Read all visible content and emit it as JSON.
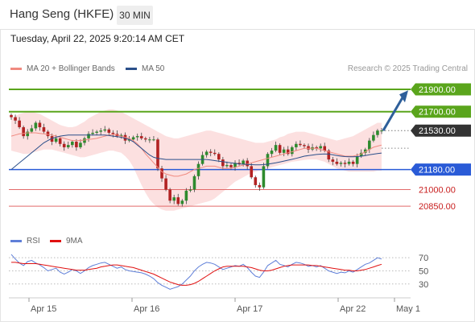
{
  "header": {
    "title": "Hang Seng (HKFE)",
    "timeframe": "30 MIN",
    "datetime": "Tuesday, April 22, 2025 9:20:14 AM CET",
    "credit": "Research © 2025 Trading Central"
  },
  "legend": {
    "ma20_label": "MA 20 + Bollinger Bands",
    "ma50_label": "MA 50",
    "rsi_label": "RSI",
    "ma9_label": "9MA"
  },
  "colors": {
    "ma20": "#f08a80",
    "ma50": "#2b4f8a",
    "bands": "#fbd8d8",
    "resistance": "#5aa51c",
    "support": "#2a5bd7",
    "target_line": "#e26a6a",
    "price_tag": "#333333",
    "arrow": "#2e5f9a",
    "rsi": "#5f7fd8",
    "rsi_ma": "#e01010"
  },
  "chart_data": [
    {
      "type": "candlestick",
      "title": "Hang Seng (HKFE)",
      "x_ticks": [
        "Apr 15",
        "Apr 16",
        "Apr 17",
        "Apr 22",
        "May 1"
      ],
      "y_range": [
        20750,
        21980
      ],
      "levels": [
        {
          "value": 21900.0,
          "label": "21900.00",
          "kind": "resistance",
          "tag": "green"
        },
        {
          "value": 21700.0,
          "label": "21700.00",
          "kind": "resistance",
          "tag": "green"
        },
        {
          "value": 21530.0,
          "label": "21530.00",
          "kind": "last_price",
          "tag": "dark"
        },
        {
          "value": 21180.0,
          "label": "21180.00",
          "kind": "pivot",
          "tag": "blue"
        },
        {
          "value": 21000.0,
          "label": "21000.00",
          "kind": "support",
          "tag": "none"
        },
        {
          "value": 20850.0,
          "label": "20850.00",
          "kind": "support",
          "tag": "none"
        }
      ],
      "close": [
        21650,
        21620,
        21560,
        21480,
        21520,
        21550,
        21600,
        21560,
        21520,
        21480,
        21430,
        21460,
        21410,
        21380,
        21400,
        21430,
        21380,
        21420,
        21460,
        21500,
        21510,
        21520,
        21530,
        21540,
        21510,
        21500,
        21480,
        21490,
        21440,
        21450,
        21470,
        21480,
        21460,
        21450,
        21450,
        21450,
        21190,
        21100,
        21000,
        20900,
        20930,
        20870,
        20900,
        20990,
        21000,
        21120,
        21230,
        21310,
        21340,
        21330,
        21320,
        21270,
        21210,
        21220,
        21200,
        21240,
        21230,
        21260,
        21210,
        21110,
        21040,
        21020,
        21210,
        21320,
        21350,
        21400,
        21330,
        21360,
        21320,
        21380,
        21410,
        21400,
        21390,
        21360,
        21380,
        21370,
        21390,
        21350,
        21270,
        21250,
        21230,
        21240,
        21230,
        21250,
        21230,
        21300,
        21330,
        21360,
        21440,
        21490,
        21530,
        21530
      ],
      "bollinger_upper": [
        21640,
        21660,
        21680,
        21690,
        21700,
        21700,
        21690,
        21680,
        21660,
        21640,
        21620,
        21600,
        21580,
        21570,
        21560,
        21560,
        21570,
        21590,
        21610,
        21640,
        21660,
        21680,
        21700,
        21710,
        21720,
        21720,
        21710,
        21700,
        21680,
        21660,
        21640,
        21620,
        21600,
        21580,
        21560,
        21540,
        21520,
        21500,
        21480,
        21470,
        21460,
        21460,
        21470,
        21480,
        21490,
        21500,
        21510,
        21520,
        21530,
        21530,
        21520,
        21510,
        21500,
        21490,
        21480,
        21470,
        21460,
        21450,
        21440,
        21430,
        21420,
        21420,
        21420,
        21430,
        21440,
        21450,
        21470,
        21480,
        21500,
        21510,
        21520,
        21520,
        21520,
        21510,
        21500,
        21490,
        21480,
        21470,
        21460,
        21450,
        21440,
        21450,
        21460,
        21470,
        21480,
        21500,
        21520,
        21540,
        21560,
        21580,
        21600,
        21600
      ],
      "bollinger_lower": [
        21350,
        21340,
        21330,
        21320,
        21320,
        21330,
        21340,
        21350,
        21360,
        21360,
        21360,
        21350,
        21340,
        21330,
        21320,
        21310,
        21300,
        21290,
        21290,
        21300,
        21310,
        21320,
        21330,
        21340,
        21350,
        21350,
        21340,
        21330,
        21300,
        21260,
        21200,
        21120,
        21040,
        20970,
        20910,
        20870,
        20840,
        20820,
        20810,
        20810,
        20810,
        20820,
        20830,
        20840,
        20850,
        20860,
        20870,
        20880,
        20890,
        20900,
        20920,
        20950,
        20980,
        21010,
        21040,
        21070,
        21090,
        21110,
        21130,
        21150,
        21160,
        21170,
        21180,
        21190,
        21200,
        21210,
        21220,
        21230,
        21240,
        21250,
        21255,
        21260,
        21265,
        21270,
        21270,
        21270,
        21260,
        21250,
        21230,
        21210,
        21190,
        21180,
        21170,
        21160,
        21160,
        21160,
        21160,
        21160,
        21160,
        21160,
        21170,
        21170
      ],
      "ma20": [
        21480,
        21490,
        21500,
        21505,
        21510,
        21510,
        21510,
        21505,
        21500,
        21495,
        21490,
        21480,
        21470,
        21460,
        21450,
        21440,
        21440,
        21440,
        21445,
        21450,
        21455,
        21460,
        21470,
        21480,
        21490,
        21495,
        21490,
        21480,
        21470,
        21460,
        21440,
        21410,
        21370,
        21320,
        21280,
        21240,
        21200,
        21160,
        21140,
        21130,
        21120,
        21120,
        21130,
        21140,
        21160,
        21180,
        21190,
        21200,
        21210,
        21210,
        21210,
        21200,
        21190,
        21190,
        21190,
        21200,
        21210,
        21220,
        21230,
        21240,
        21250,
        21260,
        21270,
        21280,
        21290,
        21300,
        21310,
        21320,
        21330,
        21340,
        21350,
        21360,
        21370,
        21370,
        21370,
        21370,
        21360,
        21350,
        21340,
        21330,
        21320,
        21310,
        21300,
        21300,
        21300,
        21310,
        21320,
        21340,
        21360,
        21380,
        21390,
        21400
      ],
      "ma50": [
        21180,
        21210,
        21240,
        21270,
        21300,
        21330,
        21360,
        21390,
        21420,
        21440,
        21460,
        21470,
        21480,
        21485,
        21490,
        21490,
        21490,
        21490,
        21490,
        21490,
        21490,
        21490,
        21490,
        21490,
        21485,
        21480,
        21475,
        21470,
        21460,
        21450,
        21430,
        21400,
        21370,
        21340,
        21310,
        21290,
        21280,
        21275,
        21270,
        21270,
        21270,
        21270,
        21270,
        21270,
        21270,
        21270,
        21270,
        21270,
        21270,
        21265,
        21260,
        21255,
        21250,
        21245,
        21240,
        21235,
        21230,
        21228,
        21226,
        21224,
        21222,
        21222,
        21224,
        21228,
        21234,
        21240,
        21248,
        21256,
        21264,
        21272,
        21280,
        21290,
        21300,
        21305,
        21310,
        21315,
        21318,
        21320,
        21318,
        21312,
        21306,
        21300,
        21296,
        21294,
        21294,
        21296,
        21300,
        21306,
        21312,
        21318,
        21324,
        21328
      ]
    },
    {
      "type": "line",
      "title": "RSI",
      "y_ticks": [
        70,
        50,
        30
      ],
      "y_range": [
        15,
        80
      ],
      "series": [
        {
          "name": "RSI",
          "values": [
            75,
            68,
            62,
            58,
            64,
            66,
            62,
            59,
            55,
            50,
            52,
            54,
            48,
            45,
            48,
            52,
            50,
            46,
            50,
            55,
            58,
            60,
            62,
            63,
            60,
            57,
            54,
            56,
            52,
            50,
            49,
            48,
            47,
            45,
            42,
            38,
            32,
            28,
            25,
            22,
            24,
            26,
            30,
            36,
            42,
            50,
            56,
            60,
            63,
            62,
            60,
            56,
            52,
            54,
            56,
            58,
            57,
            60,
            55,
            48,
            42,
            40,
            48,
            58,
            62,
            66,
            60,
            58,
            56,
            60,
            63,
            62,
            60,
            57,
            58,
            56,
            58,
            54,
            50,
            48,
            46,
            48,
            47,
            50,
            48,
            52,
            56,
            60,
            62,
            66,
            70,
            68
          ]
        },
        {
          "name": "9MA",
          "values": [
            63,
            63,
            62,
            61,
            61,
            61,
            61,
            60,
            59,
            58,
            57,
            56,
            55,
            54,
            53,
            52,
            51,
            51,
            51,
            52,
            53,
            54,
            56,
            57,
            58,
            59,
            59,
            58,
            57,
            56,
            55,
            53,
            51,
            49,
            47,
            45,
            42,
            39,
            36,
            33,
            31,
            29,
            28,
            28,
            29,
            31,
            34,
            38,
            42,
            46,
            50,
            53,
            56,
            57,
            57,
            57,
            57,
            57,
            56,
            55,
            53,
            51,
            50,
            50,
            51,
            53,
            55,
            57,
            58,
            59,
            59,
            59,
            59,
            59,
            58,
            58,
            57,
            56,
            55,
            54,
            53,
            52,
            51,
            51,
            50,
            50,
            51,
            52,
            54,
            56,
            58,
            60
          ]
        }
      ]
    }
  ]
}
